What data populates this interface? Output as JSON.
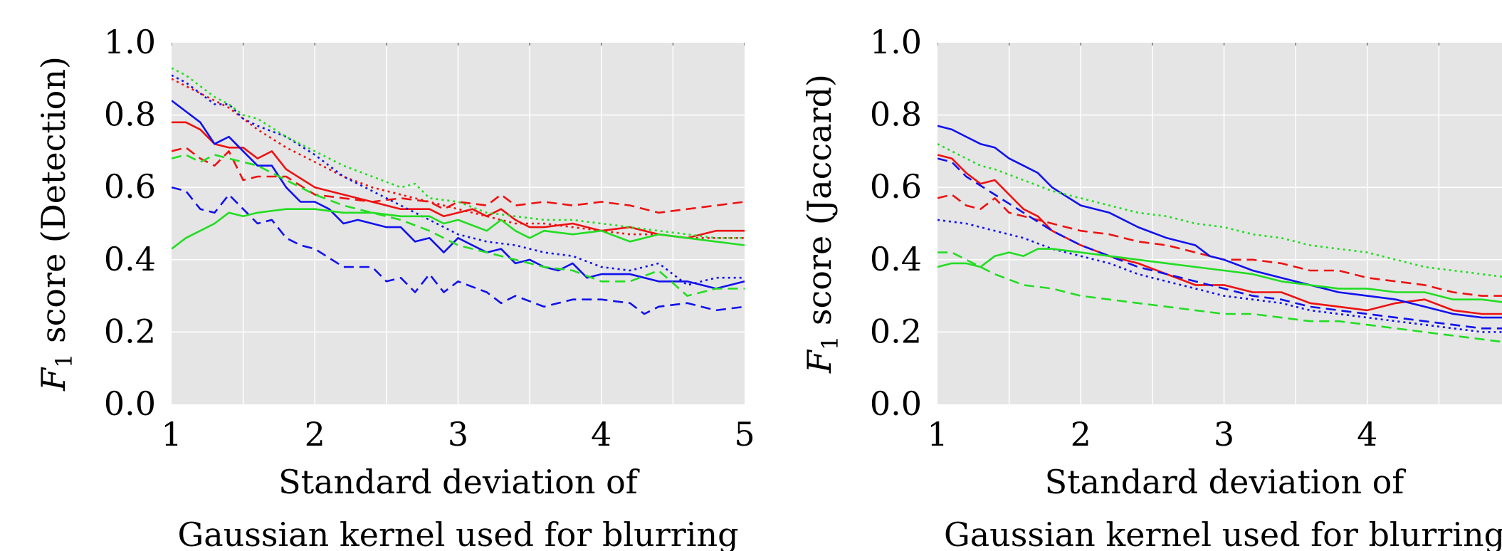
{
  "chart_data": [
    {
      "type": "line",
      "xlabel": [
        "Standard deviation of",
        "Gaussian kernel used for blurring"
      ],
      "ylabel_main": "F",
      "ylabel_sub": "1",
      "ylabel_rest": " score (Detection)",
      "xlim": [
        1,
        5
      ],
      "ylim": [
        0,
        1
      ],
      "xticks": [
        1,
        2,
        3,
        4,
        5
      ],
      "xtick_labels": [
        "1",
        "2",
        "3",
        "4",
        "5"
      ],
      "yticks": [
        0,
        0.2,
        0.4,
        0.6,
        0.8,
        1.0
      ],
      "ytick_labels": [
        "0.0",
        "0.2",
        "0.4",
        "0.6",
        "0.8",
        "1.0"
      ],
      "grid": true,
      "series": [
        {
          "color": "#ee1111",
          "style": "solid",
          "x": [
            1.0,
            1.1,
            1.2,
            1.3,
            1.4,
            1.5,
            1.6,
            1.7,
            1.8,
            2.0,
            2.2,
            2.4,
            2.6,
            2.8,
            2.9,
            3.0,
            3.1,
            3.2,
            3.3,
            3.4,
            3.5,
            3.6,
            3.8,
            4.0,
            4.2,
            4.4,
            4.6,
            4.8,
            5.0
          ],
          "y": [
            0.78,
            0.78,
            0.76,
            0.72,
            0.71,
            0.71,
            0.68,
            0.7,
            0.65,
            0.6,
            0.58,
            0.56,
            0.54,
            0.54,
            0.52,
            0.53,
            0.54,
            0.52,
            0.54,
            0.51,
            0.49,
            0.49,
            0.5,
            0.48,
            0.49,
            0.47,
            0.46,
            0.48,
            0.48
          ]
        },
        {
          "color": "#ee1111",
          "style": "dashed",
          "x": [
            1.0,
            1.1,
            1.2,
            1.3,
            1.4,
            1.5,
            1.6,
            1.8,
            2.0,
            2.2,
            2.4,
            2.6,
            2.8,
            2.9,
            3.0,
            3.2,
            3.3,
            3.4,
            3.6,
            3.8,
            4.0,
            4.2,
            4.4,
            4.6,
            4.8,
            5.0
          ],
          "y": [
            0.7,
            0.71,
            0.68,
            0.66,
            0.7,
            0.62,
            0.63,
            0.63,
            0.58,
            0.57,
            0.56,
            0.57,
            0.56,
            0.54,
            0.56,
            0.55,
            0.58,
            0.55,
            0.56,
            0.55,
            0.56,
            0.55,
            0.53,
            0.54,
            0.55,
            0.56
          ]
        },
        {
          "color": "#ee1111",
          "style": "dotted",
          "x": [
            1.0,
            1.2,
            1.4,
            1.6,
            1.8,
            2.0,
            2.2,
            2.4,
            2.6,
            2.8,
            3.0,
            3.2,
            3.4,
            3.6,
            3.8,
            4.0,
            4.2,
            4.4,
            4.6,
            4.8,
            5.0
          ],
          "y": [
            0.9,
            0.86,
            0.82,
            0.76,
            0.71,
            0.67,
            0.63,
            0.6,
            0.58,
            0.56,
            0.54,
            0.52,
            0.5,
            0.5,
            0.49,
            0.48,
            0.47,
            0.47,
            0.46,
            0.46,
            0.46
          ]
        },
        {
          "color": "#1111ee",
          "style": "solid",
          "x": [
            1.0,
            1.1,
            1.2,
            1.3,
            1.4,
            1.5,
            1.6,
            1.7,
            1.8,
            1.9,
            2.0,
            2.1,
            2.2,
            2.3,
            2.4,
            2.5,
            2.6,
            2.7,
            2.8,
            2.9,
            3.0,
            3.1,
            3.2,
            3.3,
            3.4,
            3.5,
            3.6,
            3.7,
            3.8,
            3.9,
            4.0,
            4.2,
            4.4,
            4.6,
            4.8,
            5.0
          ],
          "y": [
            0.84,
            0.81,
            0.78,
            0.72,
            0.74,
            0.7,
            0.66,
            0.66,
            0.6,
            0.56,
            0.56,
            0.54,
            0.5,
            0.51,
            0.5,
            0.49,
            0.49,
            0.45,
            0.46,
            0.42,
            0.46,
            0.44,
            0.42,
            0.43,
            0.39,
            0.4,
            0.38,
            0.37,
            0.39,
            0.35,
            0.36,
            0.36,
            0.34,
            0.34,
            0.32,
            0.34
          ]
        },
        {
          "color": "#1111ee",
          "style": "dashed",
          "x": [
            1.0,
            1.1,
            1.2,
            1.3,
            1.4,
            1.5,
            1.6,
            1.7,
            1.8,
            1.9,
            2.0,
            2.2,
            2.4,
            2.5,
            2.6,
            2.7,
            2.8,
            2.9,
            3.0,
            3.2,
            3.3,
            3.4,
            3.6,
            3.8,
            4.0,
            4.2,
            4.3,
            4.4,
            4.6,
            4.8,
            5.0
          ],
          "y": [
            0.6,
            0.59,
            0.54,
            0.53,
            0.58,
            0.54,
            0.5,
            0.51,
            0.46,
            0.44,
            0.43,
            0.38,
            0.38,
            0.34,
            0.35,
            0.31,
            0.36,
            0.31,
            0.34,
            0.31,
            0.28,
            0.3,
            0.27,
            0.29,
            0.29,
            0.28,
            0.25,
            0.27,
            0.28,
            0.26,
            0.27
          ]
        },
        {
          "color": "#1111ee",
          "style": "dotted",
          "x": [
            1.0,
            1.1,
            1.2,
            1.3,
            1.4,
            1.5,
            1.6,
            1.8,
            2.0,
            2.2,
            2.4,
            2.6,
            2.8,
            3.0,
            3.2,
            3.4,
            3.6,
            3.8,
            4.0,
            4.2,
            4.4,
            4.6,
            4.8,
            5.0
          ],
          "y": [
            0.91,
            0.89,
            0.86,
            0.83,
            0.83,
            0.79,
            0.77,
            0.74,
            0.69,
            0.63,
            0.59,
            0.55,
            0.51,
            0.47,
            0.45,
            0.44,
            0.42,
            0.41,
            0.38,
            0.37,
            0.39,
            0.33,
            0.35,
            0.35
          ]
        },
        {
          "color": "#22dd22",
          "style": "solid",
          "x": [
            1.0,
            1.1,
            1.2,
            1.3,
            1.4,
            1.5,
            1.6,
            1.8,
            2.0,
            2.2,
            2.4,
            2.6,
            2.8,
            2.9,
            3.0,
            3.2,
            3.3,
            3.4,
            3.5,
            3.6,
            3.8,
            4.0,
            4.2,
            4.4,
            4.6,
            4.8,
            5.0
          ],
          "y": [
            0.43,
            0.46,
            0.48,
            0.5,
            0.53,
            0.52,
            0.53,
            0.54,
            0.54,
            0.53,
            0.53,
            0.52,
            0.52,
            0.5,
            0.51,
            0.48,
            0.51,
            0.48,
            0.46,
            0.48,
            0.47,
            0.48,
            0.45,
            0.47,
            0.46,
            0.45,
            0.44
          ]
        },
        {
          "color": "#22dd22",
          "style": "dashed",
          "x": [
            1.0,
            1.1,
            1.2,
            1.3,
            1.4,
            1.5,
            1.6,
            1.8,
            2.0,
            2.2,
            2.4,
            2.6,
            2.8,
            3.0,
            3.2,
            3.4,
            3.6,
            3.8,
            4.0,
            4.2,
            4.4,
            4.6,
            4.8,
            5.0
          ],
          "y": [
            0.68,
            0.69,
            0.67,
            0.69,
            0.68,
            0.67,
            0.66,
            0.62,
            0.58,
            0.55,
            0.53,
            0.51,
            0.48,
            0.44,
            0.42,
            0.4,
            0.38,
            0.37,
            0.34,
            0.34,
            0.37,
            0.3,
            0.32,
            0.32
          ]
        },
        {
          "color": "#22dd22",
          "style": "dotted",
          "x": [
            1.0,
            1.1,
            1.2,
            1.3,
            1.4,
            1.5,
            1.6,
            1.8,
            2.0,
            2.2,
            2.4,
            2.6,
            2.7,
            2.8,
            3.0,
            3.2,
            3.4,
            3.6,
            3.8,
            4.0,
            4.2,
            4.4,
            4.6,
            4.8,
            5.0
          ],
          "y": [
            0.93,
            0.91,
            0.88,
            0.85,
            0.83,
            0.8,
            0.79,
            0.74,
            0.7,
            0.66,
            0.63,
            0.6,
            0.61,
            0.57,
            0.56,
            0.53,
            0.52,
            0.51,
            0.51,
            0.5,
            0.49,
            0.48,
            0.47,
            0.46,
            0.46
          ]
        }
      ]
    },
    {
      "type": "line",
      "xlabel": [
        "Standard deviation of",
        "Gaussian kernel used for blurring"
      ],
      "ylabel_main": "F",
      "ylabel_sub": "1",
      "ylabel_rest": " score (Jaccard)",
      "xlim": [
        1,
        5
      ],
      "ylim": [
        0,
        1
      ],
      "xticks": [
        1,
        2,
        3,
        4
      ],
      "xtick_labels": [
        "1",
        "2",
        "3",
        "4"
      ],
      "yticks": [
        0,
        0.2,
        0.4,
        0.6,
        0.8,
        1.0
      ],
      "ytick_labels": [
        "0.0",
        "0.2",
        "0.4",
        "0.6",
        "0.8",
        "1.0"
      ],
      "grid": true,
      "series": [
        {
          "color": "#ee1111",
          "style": "solid",
          "x": [
            1.0,
            1.1,
            1.2,
            1.3,
            1.4,
            1.5,
            1.6,
            1.7,
            1.8,
            2.0,
            2.2,
            2.4,
            2.6,
            2.8,
            3.0,
            3.2,
            3.4,
            3.6,
            3.8,
            4.0,
            4.2,
            4.4,
            4.6,
            4.8,
            5.0
          ],
          "y": [
            0.69,
            0.68,
            0.64,
            0.61,
            0.62,
            0.58,
            0.54,
            0.52,
            0.48,
            0.44,
            0.41,
            0.39,
            0.36,
            0.33,
            0.33,
            0.31,
            0.31,
            0.28,
            0.27,
            0.26,
            0.28,
            0.29,
            0.26,
            0.25,
            0.25
          ]
        },
        {
          "color": "#ee1111",
          "style": "dashed",
          "x": [
            1.0,
            1.1,
            1.2,
            1.3,
            1.4,
            1.5,
            1.6,
            1.8,
            2.0,
            2.2,
            2.4,
            2.6,
            2.8,
            3.0,
            3.2,
            3.4,
            3.6,
            3.8,
            4.0,
            4.2,
            4.4,
            4.6,
            4.8,
            5.0
          ],
          "y": [
            0.57,
            0.58,
            0.55,
            0.54,
            0.57,
            0.53,
            0.52,
            0.5,
            0.48,
            0.47,
            0.45,
            0.44,
            0.42,
            0.4,
            0.4,
            0.39,
            0.37,
            0.37,
            0.35,
            0.34,
            0.33,
            0.31,
            0.3,
            0.3
          ]
        },
        {
          "color": "#1111ee",
          "style": "solid",
          "x": [
            1.0,
            1.1,
            1.2,
            1.3,
            1.4,
            1.5,
            1.6,
            1.7,
            1.8,
            2.0,
            2.2,
            2.4,
            2.6,
            2.8,
            2.9,
            3.0,
            3.2,
            3.4,
            3.6,
            3.8,
            4.0,
            4.2,
            4.4,
            4.6,
            4.8,
            5.0
          ],
          "y": [
            0.77,
            0.76,
            0.74,
            0.72,
            0.71,
            0.68,
            0.66,
            0.64,
            0.6,
            0.55,
            0.53,
            0.49,
            0.46,
            0.44,
            0.41,
            0.4,
            0.37,
            0.35,
            0.33,
            0.31,
            0.3,
            0.29,
            0.27,
            0.25,
            0.24,
            0.24
          ]
        },
        {
          "color": "#1111ee",
          "style": "dashed",
          "x": [
            1.0,
            1.1,
            1.2,
            1.4,
            1.6,
            1.8,
            2.0,
            2.2,
            2.4,
            2.6,
            2.8,
            3.0,
            3.2,
            3.4,
            3.6,
            3.8,
            4.0,
            4.2,
            4.4,
            4.6,
            4.8,
            5.0
          ],
          "y": [
            0.68,
            0.67,
            0.63,
            0.58,
            0.53,
            0.48,
            0.44,
            0.41,
            0.38,
            0.36,
            0.34,
            0.32,
            0.3,
            0.29,
            0.27,
            0.26,
            0.25,
            0.24,
            0.23,
            0.22,
            0.21,
            0.21
          ]
        },
        {
          "color": "#1111ee",
          "style": "dotted",
          "x": [
            1.0,
            1.2,
            1.4,
            1.6,
            1.8,
            2.0,
            2.2,
            2.4,
            2.6,
            2.8,
            3.0,
            3.2,
            3.4,
            3.6,
            3.8,
            4.0,
            4.2,
            4.4,
            4.6,
            4.8,
            5.0
          ],
          "y": [
            0.51,
            0.5,
            0.48,
            0.46,
            0.43,
            0.41,
            0.39,
            0.36,
            0.34,
            0.32,
            0.3,
            0.29,
            0.28,
            0.26,
            0.25,
            0.24,
            0.23,
            0.22,
            0.21,
            0.2,
            0.2
          ]
        },
        {
          "color": "#22dd22",
          "style": "solid",
          "x": [
            1.0,
            1.1,
            1.2,
            1.3,
            1.4,
            1.5,
            1.6,
            1.7,
            1.8,
            2.0,
            2.2,
            2.4,
            2.6,
            2.8,
            3.0,
            3.2,
            3.4,
            3.6,
            3.8,
            4.0,
            4.2,
            4.4,
            4.6,
            4.8,
            5.0
          ],
          "y": [
            0.38,
            0.39,
            0.39,
            0.38,
            0.41,
            0.42,
            0.41,
            0.43,
            0.43,
            0.42,
            0.41,
            0.4,
            0.39,
            0.38,
            0.37,
            0.36,
            0.34,
            0.33,
            0.32,
            0.32,
            0.31,
            0.31,
            0.29,
            0.29,
            0.28
          ]
        },
        {
          "color": "#22dd22",
          "style": "dashed",
          "x": [
            1.0,
            1.1,
            1.2,
            1.3,
            1.4,
            1.6,
            1.8,
            2.0,
            2.2,
            2.4,
            2.6,
            2.8,
            3.0,
            3.2,
            3.4,
            3.6,
            3.8,
            4.0,
            4.2,
            4.4,
            4.6,
            4.8,
            5.0
          ],
          "y": [
            0.42,
            0.42,
            0.4,
            0.38,
            0.36,
            0.33,
            0.32,
            0.3,
            0.29,
            0.28,
            0.27,
            0.26,
            0.25,
            0.25,
            0.24,
            0.23,
            0.23,
            0.22,
            0.21,
            0.2,
            0.19,
            0.18,
            0.17
          ]
        },
        {
          "color": "#22dd22",
          "style": "dotted",
          "x": [
            1.0,
            1.1,
            1.2,
            1.3,
            1.4,
            1.6,
            1.8,
            2.0,
            2.2,
            2.4,
            2.6,
            2.8,
            3.0,
            3.2,
            3.4,
            3.6,
            3.8,
            4.0,
            4.2,
            4.4,
            4.6,
            4.8,
            5.0
          ],
          "y": [
            0.72,
            0.7,
            0.68,
            0.66,
            0.65,
            0.62,
            0.59,
            0.57,
            0.55,
            0.53,
            0.52,
            0.5,
            0.49,
            0.47,
            0.46,
            0.44,
            0.43,
            0.42,
            0.4,
            0.38,
            0.37,
            0.36,
            0.35
          ]
        }
      ]
    }
  ]
}
